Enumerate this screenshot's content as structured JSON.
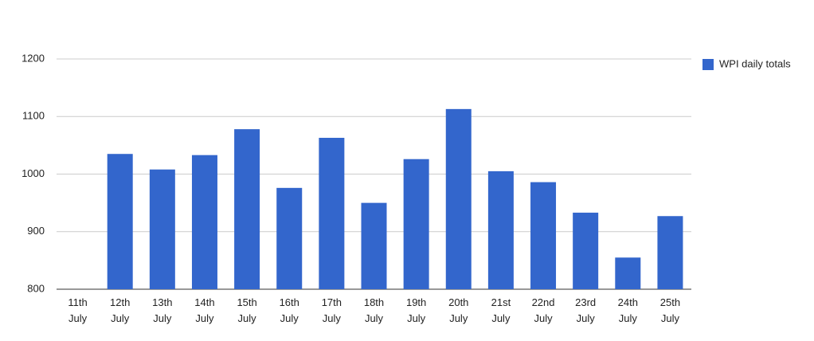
{
  "chart_data": {
    "type": "bar",
    "categories": [
      "11th July",
      "12th July",
      "13th July",
      "14th July",
      "15th July",
      "16th July",
      "17th July",
      "18th July",
      "19th July",
      "20th July",
      "21st July",
      "22nd July",
      "23rd July",
      "24th July",
      "25th July"
    ],
    "series": [
      {
        "name": "WPI daily totals",
        "color": "#3366cc",
        "values": [
          null,
          1035,
          1008,
          1033,
          1078,
          976,
          1063,
          950,
          1026,
          1113,
          1005,
          986,
          933,
          855,
          927
        ]
      }
    ],
    "ylim": [
      800,
      1200
    ],
    "yticks": [
      800,
      900,
      1000,
      1100,
      1200
    ],
    "grid": true,
    "legend": "right"
  }
}
